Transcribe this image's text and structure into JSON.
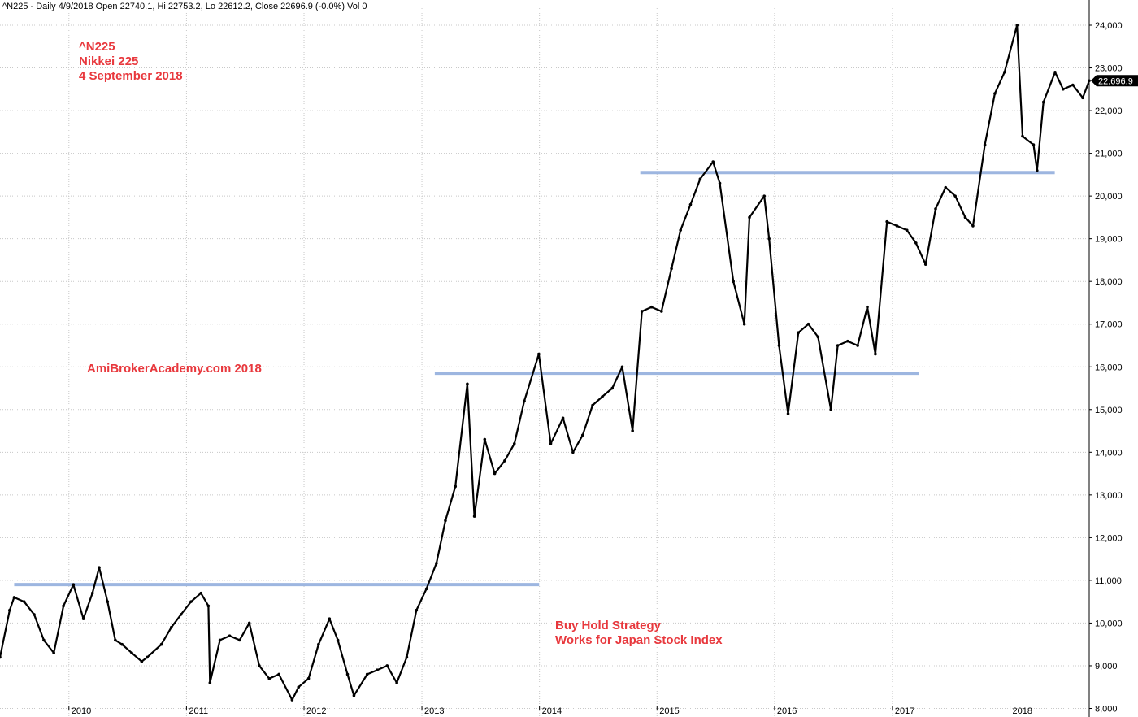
{
  "header": {
    "info": "^N225 - Daily 4/9/2018 Open 22740.1, Hi 22753.2, Lo 22612.2, Close 22696.9 (-0.0%) Vol 0"
  },
  "annotations": {
    "symbol": "^N225",
    "name": "Nikkei 225",
    "date": "4 September 2018",
    "watermark": "AmiBrokerAcademy.com  2018",
    "strategy_line1": "Buy Hold Strategy",
    "strategy_line2": "Works for Japan Stock Index"
  },
  "colors": {
    "price": "#000000",
    "resistance_lines": "#9db6e0",
    "annotation_text": "#e8383d",
    "grid": "#c8c8c8"
  },
  "chart_data": {
    "type": "line",
    "title": "",
    "xlabel": "",
    "ylabel": "",
    "x_ticks": [
      "2010",
      "2011",
      "2012",
      "2013",
      "2014",
      "2015",
      "2016",
      "2017",
      "2018"
    ],
    "y_ticks": [
      "8,000",
      "9,000",
      "10,000",
      "11,000",
      "12,000",
      "13,000",
      "14,000",
      "15,000",
      "16,000",
      "17,000",
      "18,000",
      "19,000",
      "20,000",
      "21,000",
      "22,000",
      "23,000",
      "24,000"
    ],
    "xlim": [
      "2009-06-01",
      "2018-09-04"
    ],
    "ylim": [
      7800,
      24400
    ],
    "grid": true,
    "last_value_label": "22,696.9",
    "series": [
      {
        "values_note_x": "dates",
        "x": [
          "2009-06-01",
          "2009-07-01",
          "2009-07-15",
          "2009-08-15",
          "2009-09-15",
          "2009-10-15",
          "2009-11-15",
          "2009-12-15",
          "2010-01-15",
          "2010-02-15",
          "2010-03-15",
          "2010-04-05",
          "2010-05-01",
          "2010-05-25",
          "2010-06-15",
          "2010-07-15",
          "2010-08-15",
          "2010-09-01",
          "2010-10-15",
          "2010-11-15",
          "2010-12-15",
          "2011-01-15",
          "2011-02-15",
          "2011-03-10",
          "2011-03-15",
          "2011-04-15",
          "2011-05-15",
          "2011-06-15",
          "2011-07-15",
          "2011-08-15",
          "2011-09-15",
          "2011-10-15",
          "2011-11-25",
          "2011-12-15",
          "2012-01-15",
          "2012-02-15",
          "2012-03-20",
          "2012-04-15",
          "2012-05-15",
          "2012-06-04",
          "2012-07-15",
          "2012-08-15",
          "2012-09-15",
          "2012-10-15",
          "2012-11-15",
          "2012-12-15",
          "2013-01-15",
          "2013-02-15",
          "2013-03-15",
          "2013-04-15",
          "2013-05-22",
          "2013-06-13",
          "2013-07-15",
          "2013-08-15",
          "2013-09-15",
          "2013-10-15",
          "2013-11-15",
          "2013-12-30",
          "2014-02-05",
          "2014-03-15",
          "2014-04-15",
          "2014-05-15",
          "2014-06-15",
          "2014-07-15",
          "2014-08-15",
          "2014-09-15",
          "2014-10-17",
          "2014-11-15",
          "2014-12-15",
          "2015-01-15",
          "2015-02-15",
          "2015-03-15",
          "2015-04-15",
          "2015-05-15",
          "2015-06-24",
          "2015-07-15",
          "2015-08-26",
          "2015-09-29",
          "2015-10-15",
          "2015-11-30",
          "2015-12-15",
          "2016-01-15",
          "2016-02-12",
          "2016-03-15",
          "2016-04-15",
          "2016-05-15",
          "2016-06-24",
          "2016-07-15",
          "2016-08-15",
          "2016-09-15",
          "2016-10-15",
          "2016-11-09",
          "2016-12-15",
          "2017-01-15",
          "2017-02-15",
          "2017-03-15",
          "2017-04-14",
          "2017-05-15",
          "2017-06-15",
          "2017-07-15",
          "2017-08-15",
          "2017-09-08",
          "2017-10-15",
          "2017-11-15",
          "2017-12-15",
          "2018-01-23",
          "2018-02-09",
          "2018-03-15",
          "2018-03-26",
          "2018-04-15",
          "2018-05-21",
          "2018-06-15",
          "2018-07-15",
          "2018-08-15",
          "2018-09-04"
        ],
        "y": [
          9200,
          10300,
          10600,
          10500,
          10200,
          9600,
          9300,
          10400,
          10900,
          10100,
          10700,
          11300,
          10500,
          9600,
          9500,
          9300,
          9100,
          9200,
          9500,
          9900,
          10200,
          10500,
          10700,
          10400,
          8600,
          9600,
          9700,
          9600,
          10000,
          9000,
          8700,
          8800,
          8200,
          8500,
          8700,
          9500,
          10100,
          9600,
          8800,
          8300,
          8800,
          8900,
          9000,
          8600,
          9200,
          10300,
          10800,
          11400,
          12400,
          13200,
          15600,
          12500,
          14300,
          13500,
          13800,
          14200,
          15200,
          16300,
          14200,
          14800,
          14000,
          14400,
          15100,
          15300,
          15500,
          16000,
          14500,
          17300,
          17400,
          17300,
          18300,
          19200,
          19800,
          20400,
          20800,
          20300,
          18000,
          17000,
          19500,
          20000,
          19000,
          16500,
          14900,
          16800,
          17000,
          16700,
          15000,
          16500,
          16600,
          16500,
          17400,
          16300,
          19400,
          19300,
          19200,
          18900,
          18400,
          19700,
          20200,
          20000,
          19500,
          19300,
          21200,
          22400,
          22900,
          24000,
          21400,
          21200,
          20600,
          22200,
          22900,
          22500,
          22600,
          22300,
          22700
        ]
      }
    ],
    "horizontal_levels": [
      {
        "value": 10900,
        "x_from": "2009-07-15",
        "x_to": "2013-12-31"
      },
      {
        "value": 15850,
        "x_from": "2013-02-10",
        "x_to": "2017-03-25"
      },
      {
        "value": 20550,
        "x_from": "2014-11-10",
        "x_to": "2018-05-20"
      }
    ]
  }
}
